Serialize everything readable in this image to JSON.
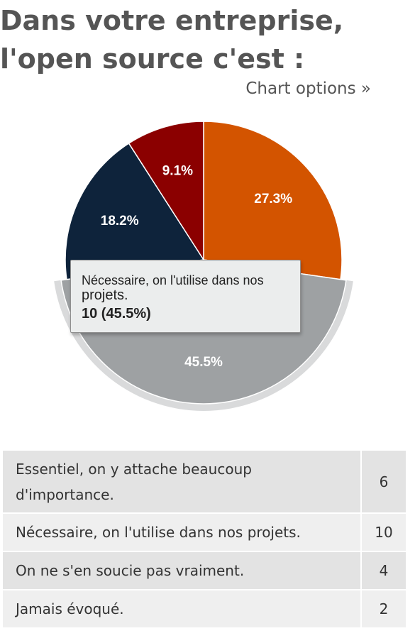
{
  "heading": {
    "title_line1": "Dans votre entreprise,",
    "title_line2": "l'open source c'est :"
  },
  "chart_options_label": "Chart options »",
  "chart_data": {
    "type": "pie",
    "categories": [
      "Essentiel, on y attache beaucoup d'importance.",
      "Nécessaire, on l'utilise dans nos projets.",
      "On ne s'en soucie pas vraiment.",
      "Jamais évoqué."
    ],
    "values": [
      6,
      10,
      4,
      2
    ],
    "percent_labels": [
      "27.3%",
      "45.5%",
      "18.2%",
      "9.1%"
    ],
    "colors": [
      "#d35400",
      "#9ea1a3",
      "#0e233b",
      "#8b0000"
    ],
    "highlighted_index": 1,
    "highlight_ring_color": "#d9dadb"
  },
  "tooltip": {
    "label_part1": "Nécessaire, on l'utilise dans nos",
    "label_part2": "projets.",
    "value_text": "10 (45.5%)"
  },
  "table": {
    "rows": [
      {
        "label_line1": "Essentiel, on y attache beaucoup",
        "label_line2": "d'importance.",
        "count": "6"
      },
      {
        "label_line1": "Nécessaire, on l'utilise dans nos projets.",
        "label_line2": "",
        "count": "10"
      },
      {
        "label_line1": "On ne s'en soucie pas vraiment.",
        "label_line2": "",
        "count": "4"
      },
      {
        "label_line1": "Jamais évoqué.",
        "label_line2": "",
        "count": "2"
      }
    ]
  }
}
